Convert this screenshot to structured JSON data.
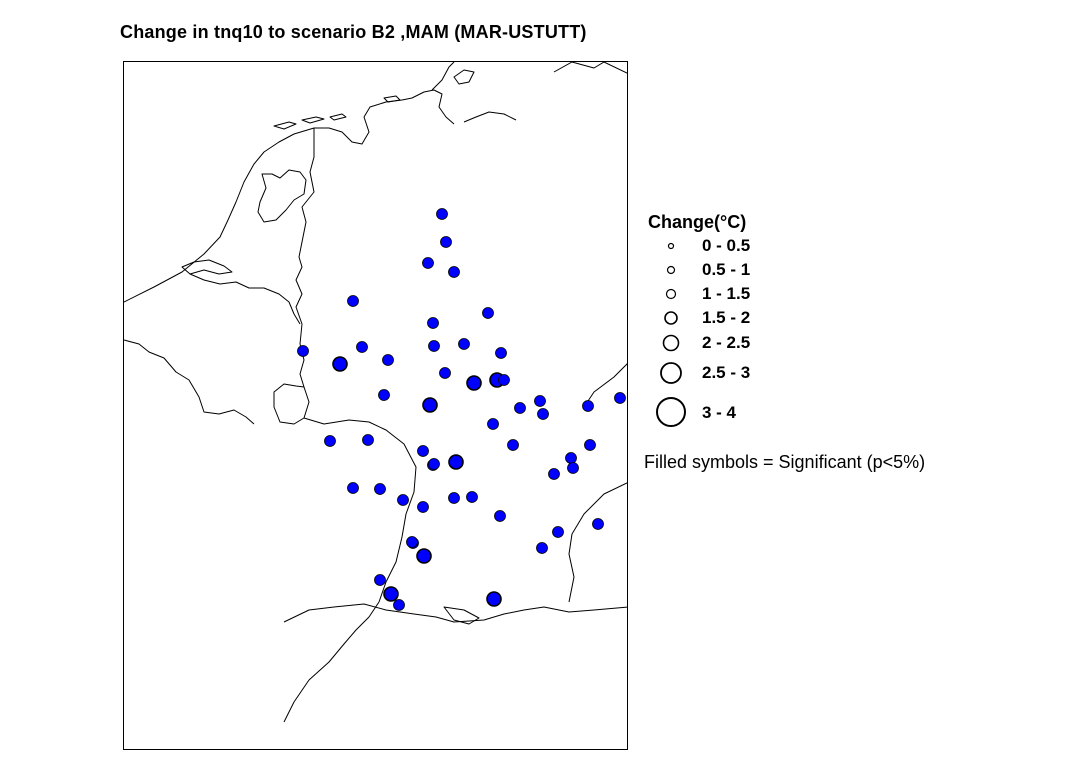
{
  "title": "Change in tnq10 to scenario B2 ,MAM (MAR-USTUTT)",
  "legend": {
    "title": "Change(°C)",
    "classes": [
      {
        "label": "0 - 0.5"
      },
      {
        "label": "0.5 - 1"
      },
      {
        "label": "1 - 1.5"
      },
      {
        "label": "1.5 - 2"
      },
      {
        "label": "2 - 2.5"
      },
      {
        "label": "2.5 - 3"
      },
      {
        "label": "3 - 4"
      }
    ],
    "note": "Filled symbols = Significant (p<5%)"
  },
  "colors": {
    "significant_fill": "#0000ff",
    "symbol_outline": "#000000",
    "boundary": "#000000"
  },
  "stations": [
    {
      "cls": 3,
      "significant": true
    },
    {
      "cls": 3,
      "significant": true
    },
    {
      "cls": 3,
      "significant": true
    },
    {
      "cls": 3,
      "significant": true
    },
    {
      "cls": 3,
      "significant": true
    },
    {
      "cls": 3,
      "significant": true
    },
    {
      "cls": 3,
      "significant": true
    },
    {
      "cls": 3,
      "significant": true
    },
    {
      "cls": 3,
      "significant": true
    },
    {
      "cls": 3,
      "significant": true
    },
    {
      "cls": 3,
      "significant": true
    },
    {
      "cls": 4,
      "significant": true
    },
    {
      "cls": 3,
      "significant": true
    },
    {
      "cls": 4,
      "significant": true
    },
    {
      "cls": 3,
      "significant": true
    },
    {
      "cls": 3,
      "significant": true
    },
    {
      "cls": 4,
      "significant": true
    },
    {
      "cls": 4,
      "significant": true
    },
    {
      "cls": 3,
      "significant": true
    },
    {
      "cls": 3,
      "significant": true
    },
    {
      "cls": 3,
      "significant": true
    },
    {
      "cls": 3,
      "significant": true
    },
    {
      "cls": 3,
      "significant": true
    },
    {
      "cls": 3,
      "significant": true
    },
    {
      "cls": 3,
      "significant": true
    },
    {
      "cls": 3,
      "significant": true
    },
    {
      "cls": 3,
      "significant": true
    },
    {
      "cls": 3,
      "significant": true
    },
    {
      "cls": 3,
      "significant": true
    },
    {
      "cls": 3,
      "significant": true
    },
    {
      "cls": 4,
      "significant": true
    },
    {
      "cls": 3,
      "significant": true
    },
    {
      "cls": 3,
      "significant": true
    },
    {
      "cls": 3,
      "significant": true
    },
    {
      "cls": 3,
      "significant": true
    },
    {
      "cls": 3,
      "significant": true
    },
    {
      "cls": 3,
      "significant": true
    },
    {
      "cls": 3,
      "significant": true
    },
    {
      "cls": 3,
      "significant": true
    },
    {
      "cls": 3,
      "significant": true
    },
    {
      "cls": 3,
      "significant": true
    },
    {
      "cls": 3,
      "significant": true
    },
    {
      "cls": 3,
      "significant": true
    },
    {
      "cls": 3,
      "significant": true
    },
    {
      "cls": 3,
      "significant": true
    },
    {
      "cls": 4,
      "significant": true
    },
    {
      "cls": 4,
      "significant": true
    },
    {
      "cls": 3,
      "significant": true
    },
    {
      "cls": 4,
      "significant": true
    },
    {
      "cls": 3,
      "significant": true
    },
    {
      "cls": 3,
      "significant": true
    },
    {
      "cls": 3,
      "significant": true
    },
    {
      "cls": 3,
      "significant": true
    },
    {
      "cls": 3,
      "significant": true
    }
  ]
}
